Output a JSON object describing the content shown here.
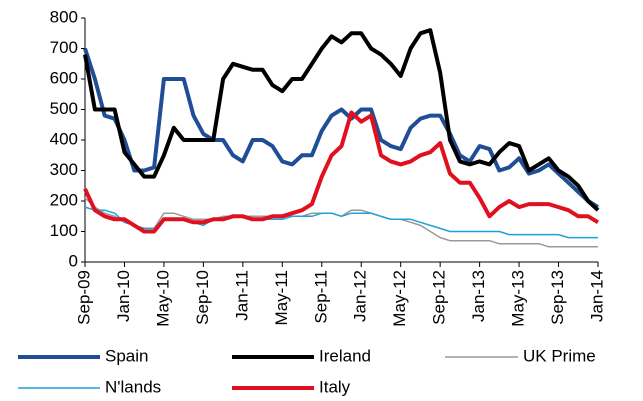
{
  "chart_data": {
    "type": "line",
    "categories": [
      "Sep-09",
      null,
      null,
      null,
      "Jan-10",
      null,
      null,
      null,
      "May-10",
      null,
      null,
      null,
      "Sep-10",
      null,
      null,
      null,
      "Jan-11",
      null,
      null,
      null,
      "May-11",
      null,
      null,
      null,
      "Sep-11",
      null,
      null,
      null,
      "Jan-12",
      null,
      null,
      null,
      "May-12",
      null,
      null,
      null,
      "Sep-12",
      null,
      null,
      null,
      "Jan-13",
      null,
      null,
      null,
      "May-13",
      null,
      null,
      null,
      "Sep-13",
      null,
      null,
      null,
      "Jan-14"
    ],
    "series": [
      {
        "name": "Spain",
        "color": "#1f4e96",
        "width": 4,
        "values": [
          700,
          600,
          480,
          470,
          400,
          300,
          300,
          310,
          600,
          600,
          600,
          480,
          420,
          400,
          400,
          350,
          330,
          400,
          400,
          380,
          330,
          320,
          350,
          350,
          430,
          480,
          500,
          470,
          500,
          500,
          400,
          380,
          370,
          440,
          470,
          480,
          480,
          420,
          350,
          330,
          380,
          370,
          300,
          310,
          340,
          290,
          300,
          320,
          290,
          260,
          230,
          200,
          180
        ]
      },
      {
        "name": "Ireland",
        "color": "#000000",
        "width": 4,
        "values": [
          680,
          500,
          500,
          500,
          360,
          320,
          280,
          280,
          350,
          440,
          400,
          400,
          400,
          400,
          600,
          650,
          640,
          630,
          630,
          580,
          560,
          600,
          600,
          650,
          700,
          740,
          720,
          750,
          750,
          700,
          680,
          650,
          610,
          700,
          750,
          760,
          620,
          400,
          330,
          320,
          330,
          320,
          360,
          390,
          380,
          300,
          320,
          340,
          300,
          280,
          250,
          200,
          170
        ]
      },
      {
        "name": "UK Prime",
        "color": "#999999",
        "width": 1.5,
        "values": [
          210,
          180,
          160,
          150,
          130,
          120,
          110,
          110,
          160,
          160,
          150,
          140,
          140,
          140,
          150,
          150,
          150,
          150,
          150,
          150,
          150,
          150,
          150,
          160,
          160,
          160,
          150,
          170,
          170,
          160,
          150,
          140,
          140,
          130,
          120,
          100,
          80,
          70,
          70,
          70,
          70,
          70,
          60,
          60,
          60,
          60,
          60,
          50,
          50,
          50,
          50,
          50,
          50
        ]
      },
      {
        "name": "N'lands",
        "color": "#1fa0dc",
        "width": 1.5,
        "values": [
          180,
          170,
          170,
          160,
          130,
          120,
          110,
          110,
          140,
          140,
          140,
          130,
          120,
          140,
          140,
          150,
          150,
          140,
          140,
          140,
          140,
          150,
          150,
          150,
          160,
          160,
          150,
          160,
          160,
          160,
          150,
          140,
          140,
          140,
          130,
          120,
          110,
          100,
          100,
          100,
          100,
          100,
          100,
          90,
          90,
          90,
          90,
          90,
          90,
          80,
          80,
          80,
          80
        ]
      },
      {
        "name": "Italy",
        "color": "#e0101e",
        "width": 4,
        "values": [
          240,
          170,
          150,
          140,
          140,
          120,
          100,
          100,
          140,
          140,
          140,
          130,
          130,
          140,
          140,
          150,
          150,
          140,
          140,
          150,
          150,
          160,
          170,
          190,
          280,
          350,
          380,
          490,
          460,
          480,
          350,
          330,
          320,
          330,
          350,
          360,
          390,
          290,
          260,
          260,
          210,
          150,
          180,
          200,
          180,
          190,
          190,
          190,
          180,
          170,
          150,
          150,
          130
        ]
      }
    ],
    "ylim": [
      0,
      800
    ],
    "yticks": [
      0,
      100,
      200,
      300,
      400,
      500,
      600,
      700,
      800
    ]
  }
}
